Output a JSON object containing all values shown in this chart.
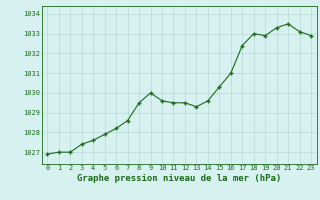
{
  "x": [
    0,
    1,
    2,
    3,
    4,
    5,
    6,
    7,
    8,
    9,
    10,
    11,
    12,
    13,
    14,
    15,
    16,
    17,
    18,
    19,
    20,
    21,
    22,
    23
  ],
  "y": [
    1026.9,
    1027.0,
    1027.0,
    1027.4,
    1027.6,
    1027.9,
    1028.2,
    1028.6,
    1029.5,
    1030.0,
    1029.6,
    1029.5,
    1029.5,
    1029.3,
    1029.6,
    1030.3,
    1031.0,
    1032.4,
    1033.0,
    1032.9,
    1033.3,
    1033.5,
    1033.1,
    1032.9
  ],
  "line_color": "#1a6b1a",
  "marker_color": "#1a6b1a",
  "background_color": "#d7f0f0",
  "grid_color": "#b8d8d8",
  "xlabel": "Graphe pression niveau de la mer (hPa)",
  "xlabel_color": "#1a6b1a",
  "xlim": [
    -0.5,
    23.5
  ],
  "ylim": [
    1026.4,
    1034.4
  ],
  "yticks": [
    1027,
    1028,
    1029,
    1030,
    1031,
    1032,
    1033,
    1034
  ],
  "xticks": [
    0,
    1,
    2,
    3,
    4,
    5,
    6,
    7,
    8,
    9,
    10,
    11,
    12,
    13,
    14,
    15,
    16,
    17,
    18,
    19,
    20,
    21,
    22,
    23
  ],
  "tick_color": "#1a6b1a",
  "border_color": "#1a6b1a",
  "fig_bg": "#d7f0f0"
}
